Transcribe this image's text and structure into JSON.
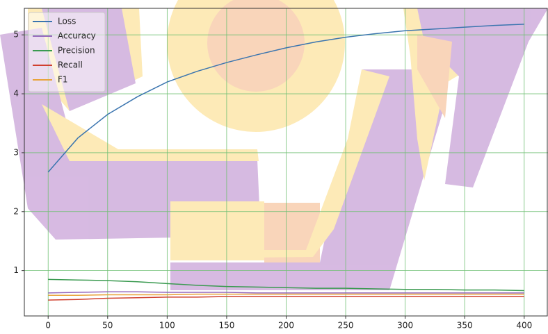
{
  "chart_data": {
    "type": "line",
    "x": [
      0,
      25,
      50,
      75,
      100,
      125,
      150,
      175,
      200,
      225,
      250,
      275,
      300,
      325,
      350,
      375,
      400
    ],
    "series": [
      {
        "name": "Loss",
        "color": "#3b75af",
        "values": [
          2.67,
          3.25,
          3.65,
          3.95,
          4.2,
          4.38,
          4.53,
          4.66,
          4.78,
          4.88,
          4.96,
          5.02,
          5.07,
          5.1,
          5.13,
          5.16,
          5.18
        ]
      },
      {
        "name": "Accuracy",
        "color": "#9467bd",
        "values": [
          0.62,
          0.63,
          0.64,
          0.64,
          0.63,
          0.63,
          0.63,
          0.62,
          0.62,
          0.62,
          0.62,
          0.62,
          0.62,
          0.62,
          0.62,
          0.62,
          0.62
        ]
      },
      {
        "name": "Precision",
        "color": "#3a9a50",
        "values": [
          0.85,
          0.84,
          0.83,
          0.81,
          0.78,
          0.75,
          0.73,
          0.72,
          0.71,
          0.7,
          0.7,
          0.69,
          0.68,
          0.68,
          0.67,
          0.67,
          0.66
        ]
      },
      {
        "name": "Recall",
        "color": "#d0402f",
        "values": [
          0.5,
          0.51,
          0.53,
          0.54,
          0.55,
          0.55,
          0.56,
          0.56,
          0.56,
          0.56,
          0.56,
          0.56,
          0.56,
          0.56,
          0.56,
          0.56,
          0.56
        ]
      },
      {
        "name": "F1",
        "color": "#e8a33a",
        "values": [
          0.58,
          0.58,
          0.59,
          0.59,
          0.59,
          0.6,
          0.6,
          0.6,
          0.6,
          0.6,
          0.6,
          0.6,
          0.6,
          0.6,
          0.6,
          0.6,
          0.6
        ]
      }
    ],
    "xlim": [
      -20,
      420
    ],
    "xticks": [
      0,
      50,
      100,
      150,
      200,
      250,
      300,
      350,
      400
    ],
    "ylim": [
      0.23,
      5.45
    ],
    "yticks": [
      1,
      2,
      3,
      4,
      5
    ],
    "grid": true,
    "legend": "upper-left"
  }
}
